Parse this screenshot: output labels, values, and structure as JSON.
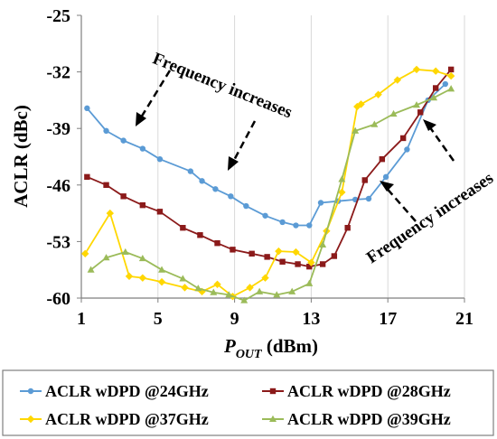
{
  "chart_data": {
    "type": "line",
    "xlabel": "P",
    "xlabel_sub": "OUT",
    "xlabel_unit": " (dBm)",
    "ylabel": "ACLR (dBc)",
    "xlim": [
      1,
      21
    ],
    "ylim": [
      -60,
      -25
    ],
    "xticks": [
      "1",
      "5",
      "9",
      "13",
      "17",
      "21"
    ],
    "yticks": [
      "-25",
      "-32",
      "-39",
      "-46",
      "-53",
      "-60"
    ],
    "grid": "vertical",
    "annotations": [
      {
        "text": "Frequency increases"
      },
      {
        "text": "Frequency increases"
      }
    ],
    "series": [
      {
        "name": "ACLR wDPD @24GHz",
        "color": "#5B9BD5",
        "marker": "circle",
        "x": [
          1.3,
          2.3,
          3.2,
          4.2,
          5.1,
          6.7,
          7.3,
          8.0,
          8.8,
          9.6,
          10.6,
          11.5,
          12.2,
          12.9,
          13.5,
          14.4,
          15.3,
          16.0,
          16.9,
          18.0,
          19.1,
          20.0
        ],
        "y": [
          -36.5,
          -39.3,
          -40.5,
          -41.5,
          -42.8,
          -44.3,
          -45.5,
          -46.5,
          -47.4,
          -48.6,
          -49.8,
          -50.6,
          -51.0,
          -51.0,
          -48.2,
          -48.0,
          -47.8,
          -47.7,
          -45.0,
          -41.6,
          -35.5,
          -33.5
        ]
      },
      {
        "name": "ACLR wDPD @28GHz",
        "color": "#8B1A1A",
        "marker": "square",
        "x": [
          1.3,
          2.3,
          3.2,
          4.2,
          5.1,
          6.3,
          7.2,
          8.1,
          8.9,
          9.9,
          10.7,
          11.5,
          12.3,
          12.9,
          13.6,
          14.2,
          14.9,
          15.8,
          16.7,
          17.8,
          18.7,
          19.5,
          20.3
        ],
        "y": [
          -45.0,
          -46.0,
          -47.4,
          -48.5,
          -49.3,
          -51.3,
          -52.2,
          -53.2,
          -54.0,
          -54.5,
          -54.9,
          -55.5,
          -55.8,
          -56.1,
          -55.8,
          -54.8,
          -51.3,
          -45.4,
          -42.8,
          -40.2,
          -37.0,
          -34.0,
          -31.7
        ]
      },
      {
        "name": "ACLR wDPD @37GHz",
        "color": "#FFD700",
        "marker": "diamond",
        "x": [
          1.2,
          2.5,
          3.5,
          4.2,
          5.2,
          6.4,
          7.3,
          8.1,
          8.9,
          9.8,
          10.6,
          11.3,
          12.2,
          13.0,
          13.8,
          14.6,
          15.4,
          15.6,
          16.5,
          17.5,
          18.5,
          19.5,
          20.3
        ],
        "y": [
          -54.5,
          -49.5,
          -57.3,
          -57.5,
          -58.0,
          -58.7,
          -59.2,
          -58.3,
          -59.8,
          -58.7,
          -57.5,
          -54.2,
          -54.3,
          -55.6,
          -51.7,
          -46.9,
          -36.3,
          -36.0,
          -34.8,
          -33.0,
          -31.7,
          -31.9,
          -32.5
        ]
      },
      {
        "name": "ACLR wDPD @39GHz",
        "color": "#9BBB59",
        "marker": "triangle",
        "x": [
          1.5,
          2.3,
          3.3,
          4.2,
          5.2,
          6.3,
          7.1,
          7.9,
          8.7,
          9.5,
          10.3,
          11.2,
          12.0,
          12.9,
          13.6,
          14.6,
          15.3,
          16.3,
          17.3,
          18.5,
          19.4,
          20.3
        ],
        "y": [
          -56.5,
          -55.0,
          -54.3,
          -55.1,
          -56.5,
          -57.6,
          -58.8,
          -59.3,
          -59.6,
          -60.3,
          -59.2,
          -59.6,
          -59.2,
          -58.2,
          -53.4,
          -45.3,
          -39.3,
          -38.5,
          -37.2,
          -36.1,
          -35.2,
          -34.1
        ]
      }
    ]
  }
}
